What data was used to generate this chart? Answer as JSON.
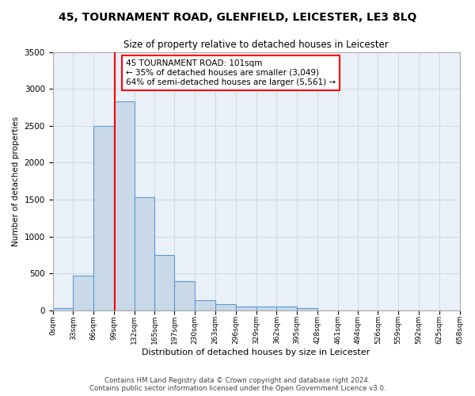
{
  "title": "45, TOURNAMENT ROAD, GLENFIELD, LEICESTER, LE3 8LQ",
  "subtitle": "Size of property relative to detached houses in Leicester",
  "xlabel": "Distribution of detached houses by size in Leicester",
  "ylabel": "Number of detached properties",
  "bin_labels": [
    "0sqm",
    "33sqm",
    "66sqm",
    "99sqm",
    "132sqm",
    "165sqm",
    "197sqm",
    "230sqm",
    "263sqm",
    "296sqm",
    "329sqm",
    "362sqm",
    "395sqm",
    "428sqm",
    "461sqm",
    "494sqm",
    "526sqm",
    "559sqm",
    "592sqm",
    "625sqm",
    "658sqm"
  ],
  "bin_edges": [
    0,
    33,
    66,
    99,
    132,
    165,
    197,
    230,
    263,
    296,
    329,
    362,
    395,
    428,
    461,
    494,
    526,
    559,
    592,
    625,
    658
  ],
  "bar_values": [
    25,
    470,
    2500,
    2830,
    1530,
    750,
    390,
    140,
    80,
    55,
    55,
    50,
    30,
    0,
    0,
    0,
    0,
    0,
    0,
    0
  ],
  "bar_color": "#c9d9e8",
  "bar_edge_color": "#5b9bd5",
  "grid_color": "#d0d8e0",
  "bg_color": "#eaf0f7",
  "vline_x": 101,
  "vline_color": "red",
  "annotation_text": "45 TOURNAMENT ROAD: 101sqm\n← 35% of detached houses are smaller (3,049)\n64% of semi-detached houses are larger (5,561) →",
  "ylim": [
    0,
    3500
  ],
  "yticks": [
    0,
    500,
    1000,
    1500,
    2000,
    2500,
    3000,
    3500
  ],
  "footer_line1": "Contains HM Land Registry data © Crown copyright and database right 2024.",
  "footer_line2": "Contains public sector information licensed under the Open Government Licence v3.0."
}
